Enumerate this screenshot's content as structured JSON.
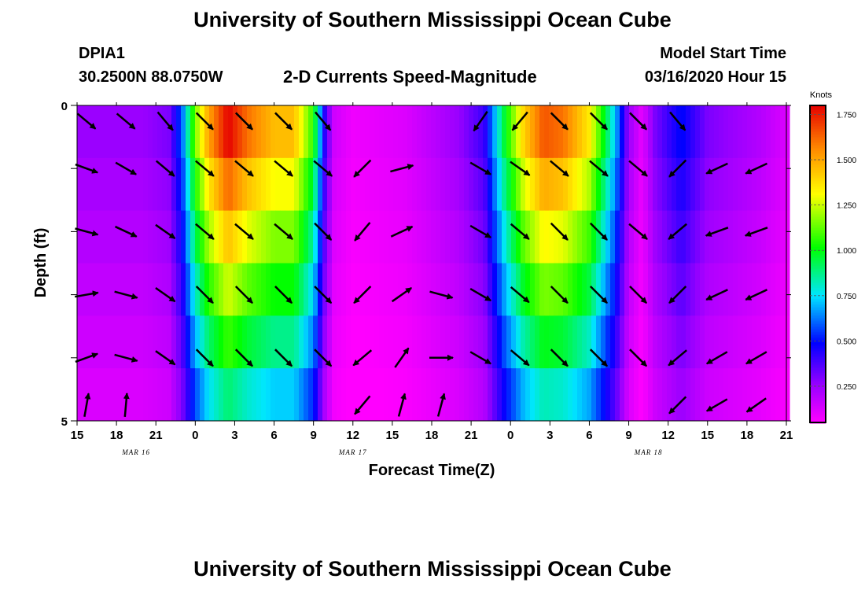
{
  "header": {
    "title": "University of Southern Mississippi Ocean Cube",
    "station_id": "DPIA1",
    "station_coords": "30.2500N 88.0750W",
    "subtitle": "2-D Currents Speed-Magnitude",
    "model_start_label": "Model Start Time",
    "model_start_value": "03/16/2020 Hour 15"
  },
  "footer": {
    "title": "University of Southern Mississippi Ocean Cube"
  },
  "chart_data": {
    "type": "heatmap",
    "xlabel": "Forecast Time(Z)",
    "ylabel": "Depth (ft)",
    "x_start_hour": 15,
    "x_end_hour": 69,
    "x_tick_labels": [
      "15",
      "18",
      "21",
      "0",
      "3",
      "6",
      "9",
      "12",
      "15",
      "18",
      "21",
      "0",
      "3",
      "6",
      "9",
      "12",
      "15",
      "18",
      "21"
    ],
    "date_labels": [
      {
        "label": "MAR 16",
        "hour": 19.5
      },
      {
        "label": "MAR 17",
        "hour": 36
      },
      {
        "label": "MAR 18",
        "hour": 58.5
      }
    ],
    "y_tick_labels": [
      "0",
      "5"
    ],
    "ylim": [
      0,
      5
    ],
    "depth_rows": [
      0.25,
      1.0,
      2.0,
      3.0,
      4.0,
      4.75
    ],
    "colorbar": {
      "title": "Knots",
      "min": 0.05,
      "max": 1.8,
      "tick_values": [
        0.25,
        0.5,
        0.75,
        1.0,
        1.25,
        1.5,
        1.75
      ],
      "tick_labels": [
        "0.250",
        "0.500",
        "0.750",
        "1.000",
        "1.250",
        "1.500",
        "1.750"
      ]
    },
    "speed_profile": [
      {
        "hour": 15,
        "speed": 0.25
      },
      {
        "hour": 20,
        "speed": 0.25
      },
      {
        "hour": 22,
        "speed": 0.3
      },
      {
        "hour": 23,
        "speed": 0.6
      },
      {
        "hour": 24,
        "speed": 1.15
      },
      {
        "hour": 25,
        "speed": 1.5
      },
      {
        "hour": 26.5,
        "speed": 1.8
      },
      {
        "hour": 28,
        "speed": 1.6
      },
      {
        "hour": 30,
        "speed": 1.45
      },
      {
        "hour": 31.5,
        "speed": 1.45
      },
      {
        "hour": 33,
        "speed": 1.05
      },
      {
        "hour": 33.8,
        "speed": 0.45
      },
      {
        "hour": 34.5,
        "speed": 0.15
      },
      {
        "hour": 36,
        "speed": 0.08
      },
      {
        "hour": 40,
        "speed": 0.12
      },
      {
        "hour": 44,
        "speed": 0.25
      },
      {
        "hour": 46,
        "speed": 0.4
      },
      {
        "hour": 47.5,
        "speed": 0.95
      },
      {
        "hour": 49,
        "speed": 1.4
      },
      {
        "hour": 50.5,
        "speed": 1.65
      },
      {
        "hour": 52,
        "speed": 1.6
      },
      {
        "hour": 54,
        "speed": 1.35
      },
      {
        "hour": 56,
        "speed": 0.7
      },
      {
        "hour": 57,
        "speed": 0.25
      },
      {
        "hour": 58,
        "speed": 0.1
      },
      {
        "hour": 59,
        "speed": 0.3
      },
      {
        "hour": 61,
        "speed": 0.5
      },
      {
        "hour": 63,
        "speed": 0.3
      },
      {
        "hour": 67,
        "speed": 0.2
      },
      {
        "hour": 69,
        "speed": 0.12
      }
    ],
    "depth_factors": [
      1.0,
      0.9,
      0.8,
      0.7,
      0.6,
      0.5
    ],
    "vector_hours": [
      15,
      18,
      21,
      24,
      27,
      30,
      33,
      36,
      39,
      42,
      45,
      48,
      51,
      54,
      57,
      60,
      63,
      66
    ],
    "vector_angles_deg": [
      [
        40,
        40,
        50,
        45,
        45,
        45,
        50,
        125,
        125,
        125,
        125,
        130,
        45,
        45,
        45,
        50,
        150,
        155
      ],
      [
        20,
        30,
        40,
        40,
        40,
        40,
        40,
        135,
        -15,
        25,
        30,
        35,
        40,
        40,
        40,
        135,
        155,
        155
      ],
      [
        15,
        25,
        35,
        40,
        40,
        40,
        45,
        130,
        -25,
        20,
        30,
        40,
        45,
        45,
        40,
        140,
        160,
        160
      ],
      [
        -10,
        15,
        35,
        45,
        45,
        45,
        45,
        135,
        -35,
        15,
        30,
        40,
        45,
        45,
        45,
        135,
        155,
        155
      ],
      [
        -20,
        15,
        35,
        45,
        45,
        45,
        45,
        140,
        -55,
        0,
        30,
        40,
        45,
        45,
        45,
        140,
        150,
        150
      ],
      [
        -80,
        -85,
        0,
        0,
        0,
        0,
        0,
        130,
        -75,
        -75,
        0,
        0,
        0,
        0,
        0,
        135,
        150,
        145
      ]
    ],
    "vector_present": [
      [
        true,
        true,
        true,
        true,
        true,
        true,
        true,
        false,
        false,
        false,
        true,
        true,
        true,
        true,
        true,
        true,
        false,
        false
      ],
      [
        true,
        true,
        true,
        true,
        true,
        true,
        true,
        true,
        true,
        false,
        true,
        true,
        true,
        true,
        true,
        true,
        true,
        true
      ],
      [
        true,
        true,
        true,
        true,
        true,
        true,
        true,
        true,
        true,
        false,
        true,
        true,
        true,
        true,
        true,
        true,
        true,
        true
      ],
      [
        true,
        true,
        true,
        true,
        true,
        true,
        true,
        true,
        true,
        true,
        true,
        true,
        true,
        true,
        true,
        true,
        true,
        true
      ],
      [
        true,
        true,
        true,
        true,
        true,
        true,
        true,
        true,
        true,
        true,
        true,
        true,
        true,
        true,
        true,
        true,
        true,
        true
      ],
      [
        true,
        true,
        false,
        false,
        false,
        false,
        false,
        true,
        true,
        true,
        false,
        false,
        false,
        false,
        false,
        true,
        true,
        true
      ]
    ]
  }
}
